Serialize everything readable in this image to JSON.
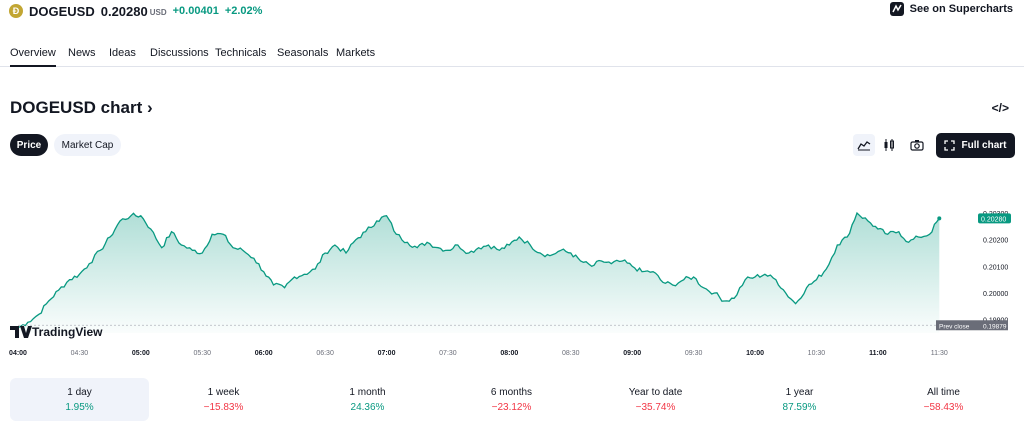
{
  "header": {
    "coin_logo": "Ð",
    "symbol": "DOGEUSD",
    "price": "0.20280",
    "currency": "USD",
    "change_abs": "+0.00401",
    "change_pct": "+2.02%",
    "supercharts_label": "See on Supercharts"
  },
  "tabs": [
    {
      "label": "Overview"
    },
    {
      "label": "News"
    },
    {
      "label": "Ideas"
    },
    {
      "label": "Discussions"
    },
    {
      "label": "Technicals"
    },
    {
      "label": "Seasonals"
    },
    {
      "label": "Markets"
    }
  ],
  "chart_title": "DOGEUSD chart ›",
  "code_icon": "</>",
  "toggles": {
    "price": "Price",
    "market_cap": "Market Cap"
  },
  "full_chart_label": "Full chart",
  "chart_data": {
    "type": "area",
    "brand": "TradingView",
    "line_color": "#089981",
    "x_ticks": [
      "04:00",
      "04:30",
      "05:00",
      "05:30",
      "06:00",
      "06:30",
      "07:00",
      "07:30",
      "08:00",
      "08:30",
      "09:00",
      "09:30",
      "10:00",
      "10:30",
      "11:00",
      "11:30"
    ],
    "y_ticks": [
      "0.20300",
      "0.20200",
      "0.20100",
      "0.20000",
      "0.19900"
    ],
    "ylim": [
      0.1985,
      0.2045
    ],
    "x_range_hours": [
      4.0,
      11.75
    ],
    "last_price_label": "0.20280",
    "prev_close_label": "Prev close",
    "prev_close_value": "0.19879",
    "points": [
      [
        4.0,
        0.1987
      ],
      [
        4.08,
        0.1989
      ],
      [
        4.17,
        0.1992
      ],
      [
        4.25,
        0.1997
      ],
      [
        4.33,
        0.2001
      ],
      [
        4.42,
        0.2005
      ],
      [
        4.5,
        0.2007
      ],
      [
        4.58,
        0.2011
      ],
      [
        4.67,
        0.2016
      ],
      [
        4.75,
        0.2021
      ],
      [
        4.83,
        0.2027
      ],
      [
        4.92,
        0.2029
      ],
      [
        5.0,
        0.2029
      ],
      [
        5.08,
        0.2024
      ],
      [
        5.17,
        0.2017
      ],
      [
        5.25,
        0.2023
      ],
      [
        5.33,
        0.2018
      ],
      [
        5.42,
        0.2016
      ],
      [
        5.5,
        0.2015
      ],
      [
        5.58,
        0.2022
      ],
      [
        5.67,
        0.2022
      ],
      [
        5.75,
        0.2017
      ],
      [
        5.83,
        0.2016
      ],
      [
        5.92,
        0.2013
      ],
      [
        6.0,
        0.2008
      ],
      [
        6.08,
        0.2003
      ],
      [
        6.17,
        0.2002
      ],
      [
        6.25,
        0.2006
      ],
      [
        6.33,
        0.2007
      ],
      [
        6.42,
        0.2009
      ],
      [
        6.5,
        0.2015
      ],
      [
        6.58,
        0.2018
      ],
      [
        6.67,
        0.2015
      ],
      [
        6.75,
        0.202
      ],
      [
        6.83,
        0.2023
      ],
      [
        6.92,
        0.2027
      ],
      [
        7.0,
        0.2029
      ],
      [
        7.08,
        0.2022
      ],
      [
        7.17,
        0.2019
      ],
      [
        7.25,
        0.2017
      ],
      [
        7.33,
        0.2019
      ],
      [
        7.42,
        0.2017
      ],
      [
        7.5,
        0.2016
      ],
      [
        7.58,
        0.2018
      ],
      [
        7.67,
        0.2015
      ],
      [
        7.75,
        0.2017
      ],
      [
        7.83,
        0.2018
      ],
      [
        7.92,
        0.2016
      ],
      [
        8.0,
        0.2018
      ],
      [
        8.08,
        0.2021
      ],
      [
        8.17,
        0.2018
      ],
      [
        8.25,
        0.2015
      ],
      [
        8.33,
        0.2014
      ],
      [
        8.42,
        0.2016
      ],
      [
        8.5,
        0.2015
      ],
      [
        8.58,
        0.2012
      ],
      [
        8.67,
        0.201
      ],
      [
        8.75,
        0.2012
      ],
      [
        8.83,
        0.2011
      ],
      [
        8.92,
        0.2012
      ],
      [
        9.0,
        0.201
      ],
      [
        9.08,
        0.2008
      ],
      [
        9.17,
        0.2008
      ],
      [
        9.25,
        0.2004
      ],
      [
        9.33,
        0.2003
      ],
      [
        9.42,
        0.2005
      ],
      [
        9.5,
        0.2006
      ],
      [
        9.58,
        0.2002
      ],
      [
        9.67,
        0.2
      ],
      [
        9.75,
        0.1997
      ],
      [
        9.83,
        0.1998
      ],
      [
        9.92,
        0.2005
      ],
      [
        10.0,
        0.2006
      ],
      [
        10.08,
        0.2007
      ],
      [
        10.17,
        0.2005
      ],
      [
        10.25,
        0.2
      ],
      [
        10.33,
        0.1996
      ],
      [
        10.42,
        0.2002
      ],
      [
        10.5,
        0.2005
      ],
      [
        10.58,
        0.2009
      ],
      [
        10.67,
        0.2018
      ],
      [
        10.75,
        0.2021
      ],
      [
        10.83,
        0.203
      ],
      [
        10.92,
        0.2027
      ],
      [
        11.0,
        0.2024
      ],
      [
        11.08,
        0.2022
      ],
      [
        11.17,
        0.2023
      ],
      [
        11.25,
        0.2019
      ],
      [
        11.33,
        0.2021
      ],
      [
        11.42,
        0.2022
      ],
      [
        11.5,
        0.2028
      ]
    ]
  },
  "performance": [
    {
      "label": "1 day",
      "value": "1.95%",
      "trend": "pos"
    },
    {
      "label": "1 week",
      "value": "−15.83%",
      "trend": "neg"
    },
    {
      "label": "1 month",
      "value": "24.36%",
      "trend": "pos"
    },
    {
      "label": "6 months",
      "value": "−23.12%",
      "trend": "neg"
    },
    {
      "label": "Year to date",
      "value": "−35.74%",
      "trend": "neg"
    },
    {
      "label": "1 year",
      "value": "87.59%",
      "trend": "pos"
    },
    {
      "label": "All time",
      "value": "−58.43%",
      "trend": "neg"
    }
  ]
}
